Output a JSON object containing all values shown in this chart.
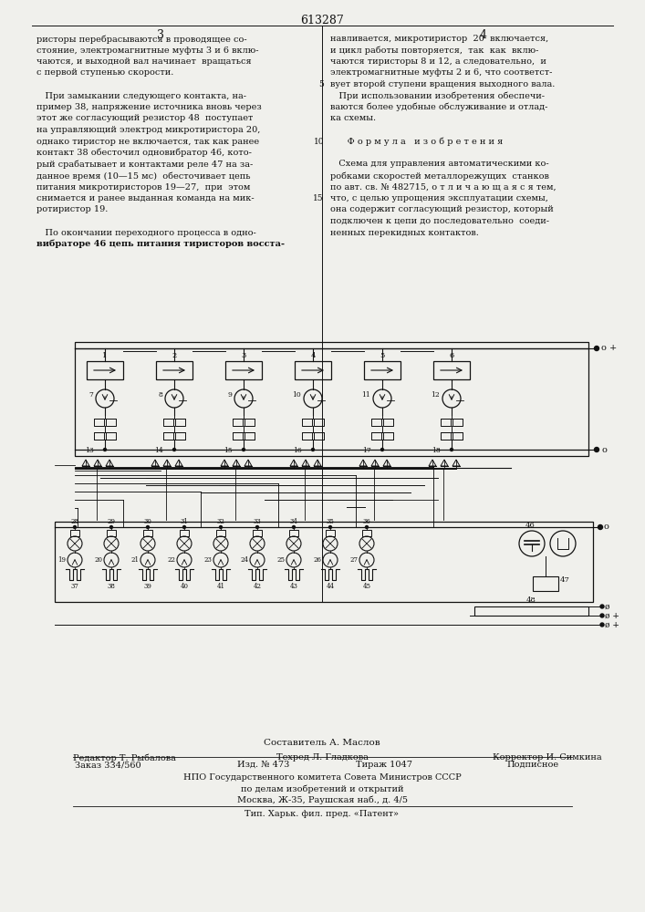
{
  "patent_number": "613287",
  "page_numbers": [
    "3",
    "4"
  ],
  "col1_text": [
    "ристоры перебрасываются в проводящее со-",
    "стояние, электромагнитные муфты 3 и 6 вклю-",
    "чаются, и выходной вал начинает  вращаться",
    "с первой ступенью скорости.",
    "",
    "   При замыкании следующего контакта, на-",
    "пример 38, напряжение источника вновь через",
    "этот же согласующий резистор 48  поступает",
    "на управляющий электрод микротиристора 20,",
    "однако тиристор не включается, так как ранее",
    "контакт 38 обесточил одновибратор 46, кото-",
    "рый срабатывает и контактами реле 47 на за-",
    "данное время (10—15 мс)  обесточивает цепь",
    "питания микротиристоров 19—27,  при  этом",
    "снимается и ранее выданная команда на мик-",
    "ротиристор 19.",
    "",
    "   По окончании переходного процесса в одно-",
    "вибраторе 46 цепь питания тиристоров восста-"
  ],
  "col2_text": [
    "навливается, микротиристор  20  включается,",
    "и цикл работы повторяется,  так  как  вклю-",
    "чаются тиристоры 8 и 12, а следовательно,  и",
    "электромагнитные муфты 2 и 6, что соответст-",
    "вует второй ступени вращения выходного вала.",
    "   При использовании изобретения обеспечи-",
    "ваются более удобные обслуживание и отлад-",
    "ка схемы.",
    "",
    "      Ф о р м у л а   и з о б р е т е н и я",
    "",
    "   Схема для управления автоматическими ко-",
    "робками скоростей металлорежущих  станков",
    "по авт. св. № 482715, о т л и ч а ю щ а я с я тем,",
    "что, с целью упрощения эксплуатации схемы,",
    "она содержит согласующий резистор, который",
    "подключен к цепи до последовательно  соеди-",
    "ненных перекидных контактов."
  ],
  "footer_compiler": "Составитель А. Маслов",
  "footer_editor": "Редактор Т. Рыбалова",
  "footer_techred": "Техред Л. Гладкова",
  "footer_corrector": "Корректор И. Симкина",
  "footer_order": "Заказ 334/560",
  "footer_izd": "Изд. № 473",
  "footer_tirazh": "Тираж 1047",
  "footer_podpisnoe": "Подписное",
  "footer_npo": "НПО Государственного комитета Совета Министров СССР",
  "footer_dela": "по делам изобретений и открытий",
  "footer_addr": "Москва, Ж-35, Раушская наб., д. 4/5",
  "footer_tip": "Тип. Харьк. фил. пред. «Патент»",
  "bg_color": "#f0f0ec",
  "text_color": "#111111",
  "diagram_color": "#111111"
}
